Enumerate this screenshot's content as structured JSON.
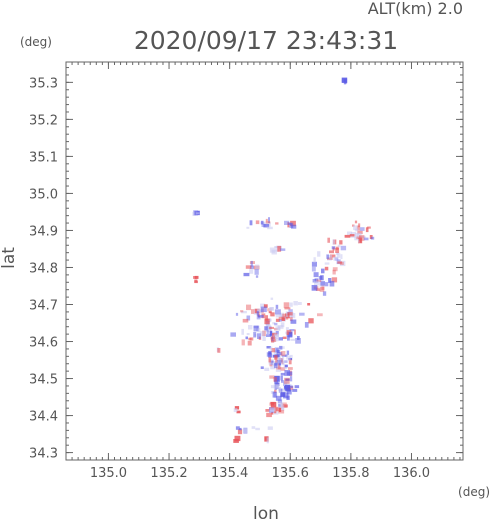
{
  "chart_data": {
    "type": "scatter",
    "title": "2020/09/17 23:43:31",
    "subtitle": "ALT(km) 2.0",
    "xlabel": "lon",
    "ylabel": "lat",
    "xunit": "(deg)",
    "yunit": "(deg)",
    "xlim": [
      134.86,
      136.17
    ],
    "ylim": [
      34.28,
      35.355
    ],
    "xticks": [
      135.0,
      135.2,
      135.4,
      135.6,
      135.8,
      136.0
    ],
    "xtick_labels": [
      "135.0",
      "135.2",
      "135.4",
      "135.6",
      "135.8",
      "136.0"
    ],
    "yticks": [
      34.3,
      34.4,
      34.5,
      34.6,
      34.7,
      34.8,
      34.9,
      35.0,
      35.1,
      35.2,
      35.3
    ],
    "ytick_labels": [
      "34.3",
      "34.4",
      "34.5",
      "34.6",
      "34.7",
      "34.8",
      "34.9",
      "35.0",
      "35.1",
      "35.2",
      "35.3"
    ],
    "grid": false,
    "colors": {
      "positive": "#e8545a",
      "negative": "#5a5ae6",
      "neutral": "#c8c8f0"
    },
    "clusters": [
      {
        "lon": 135.78,
        "lat": 35.305,
        "spread": [
          0.01,
          0.004
        ],
        "count": 4,
        "bias": -0.3
      },
      {
        "lon": 135.295,
        "lat": 34.945,
        "spread": [
          0.008,
          0.006
        ],
        "count": 5,
        "bias": -0.2
      },
      {
        "lon": 135.51,
        "lat": 34.92,
        "spread": [
          0.04,
          0.012
        ],
        "count": 14,
        "bias": -0.1
      },
      {
        "lon": 135.6,
        "lat": 34.915,
        "spread": [
          0.015,
          0.008
        ],
        "count": 6,
        "bias": 0.2
      },
      {
        "lon": 135.825,
        "lat": 34.895,
        "spread": [
          0.04,
          0.025
        ],
        "count": 26,
        "bias": 0.3
      },
      {
        "lon": 135.74,
        "lat": 34.84,
        "spread": [
          0.05,
          0.04
        ],
        "count": 30,
        "bias": 0.1
      },
      {
        "lon": 135.71,
        "lat": 34.76,
        "spread": [
          0.04,
          0.035
        ],
        "count": 22,
        "bias": 0.0
      },
      {
        "lon": 135.56,
        "lat": 34.85,
        "spread": [
          0.015,
          0.02
        ],
        "count": 8,
        "bias": -0.1
      },
      {
        "lon": 135.47,
        "lat": 34.8,
        "spread": [
          0.03,
          0.02
        ],
        "count": 10,
        "bias": -0.2
      },
      {
        "lon": 135.29,
        "lat": 34.77,
        "spread": [
          0.006,
          0.01
        ],
        "count": 4,
        "bias": 0.6
      },
      {
        "lon": 135.54,
        "lat": 34.68,
        "spread": [
          0.11,
          0.025
        ],
        "count": 60,
        "bias": 0.2
      },
      {
        "lon": 135.53,
        "lat": 34.62,
        "spread": [
          0.08,
          0.03
        ],
        "count": 70,
        "bias": 0.0
      },
      {
        "lon": 135.56,
        "lat": 34.55,
        "spread": [
          0.04,
          0.03
        ],
        "count": 55,
        "bias": -0.2
      },
      {
        "lon": 135.58,
        "lat": 34.48,
        "spread": [
          0.04,
          0.03
        ],
        "count": 50,
        "bias": -0.3
      },
      {
        "lon": 135.56,
        "lat": 34.42,
        "spread": [
          0.035,
          0.02
        ],
        "count": 26,
        "bias": 0.4
      },
      {
        "lon": 135.425,
        "lat": 34.415,
        "spread": [
          0.006,
          0.01
        ],
        "count": 3,
        "bias": 0.7
      },
      {
        "lon": 135.48,
        "lat": 34.365,
        "spread": [
          0.05,
          0.01
        ],
        "count": 8,
        "bias": 0.0
      },
      {
        "lon": 135.525,
        "lat": 34.335,
        "spread": [
          0.008,
          0.006
        ],
        "count": 3,
        "bias": 0.6
      },
      {
        "lon": 135.42,
        "lat": 34.335,
        "spread": [
          0.006,
          0.006
        ],
        "count": 2,
        "bias": 0.5
      },
      {
        "lon": 135.36,
        "lat": 34.575,
        "spread": [
          0.005,
          0.005
        ],
        "count": 2,
        "bias": 0.7
      }
    ]
  }
}
